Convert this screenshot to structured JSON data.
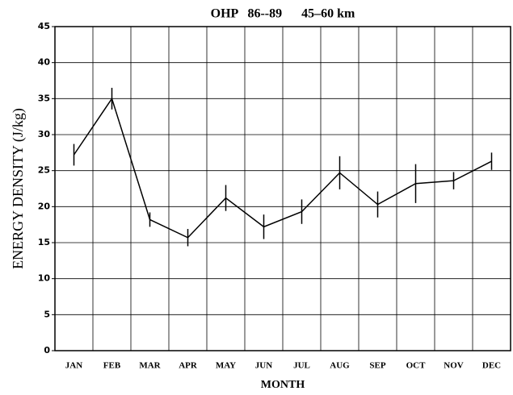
{
  "chart_data": {
    "type": "line",
    "title": "OHP   86--89      45–60 km",
    "x_label": "MONTH",
    "y_label": "ENERGY DENSITY (J/kg)",
    "categories": [
      "JAN",
      "FEB",
      "MAR",
      "APR",
      "MAY",
      "JUN",
      "JUL",
      "AUG",
      "SEP",
      "OCT",
      "NOV",
      "DEC"
    ],
    "series": [
      {
        "color": "#000000",
        "values": [
          27.2,
          35.0,
          18.2,
          15.7,
          21.2,
          17.2,
          19.3,
          24.7,
          20.3,
          23.2,
          23.6,
          26.3
        ],
        "errors": [
          1.5,
          1.5,
          1.0,
          1.2,
          1.8,
          1.7,
          1.7,
          2.3,
          1.8,
          2.7,
          1.2,
          1.2
        ]
      }
    ],
    "ylim": [
      0,
      45
    ],
    "yticks": [
      0,
      5,
      10,
      15,
      20,
      25,
      30,
      35,
      40,
      45
    ],
    "grid": true
  }
}
